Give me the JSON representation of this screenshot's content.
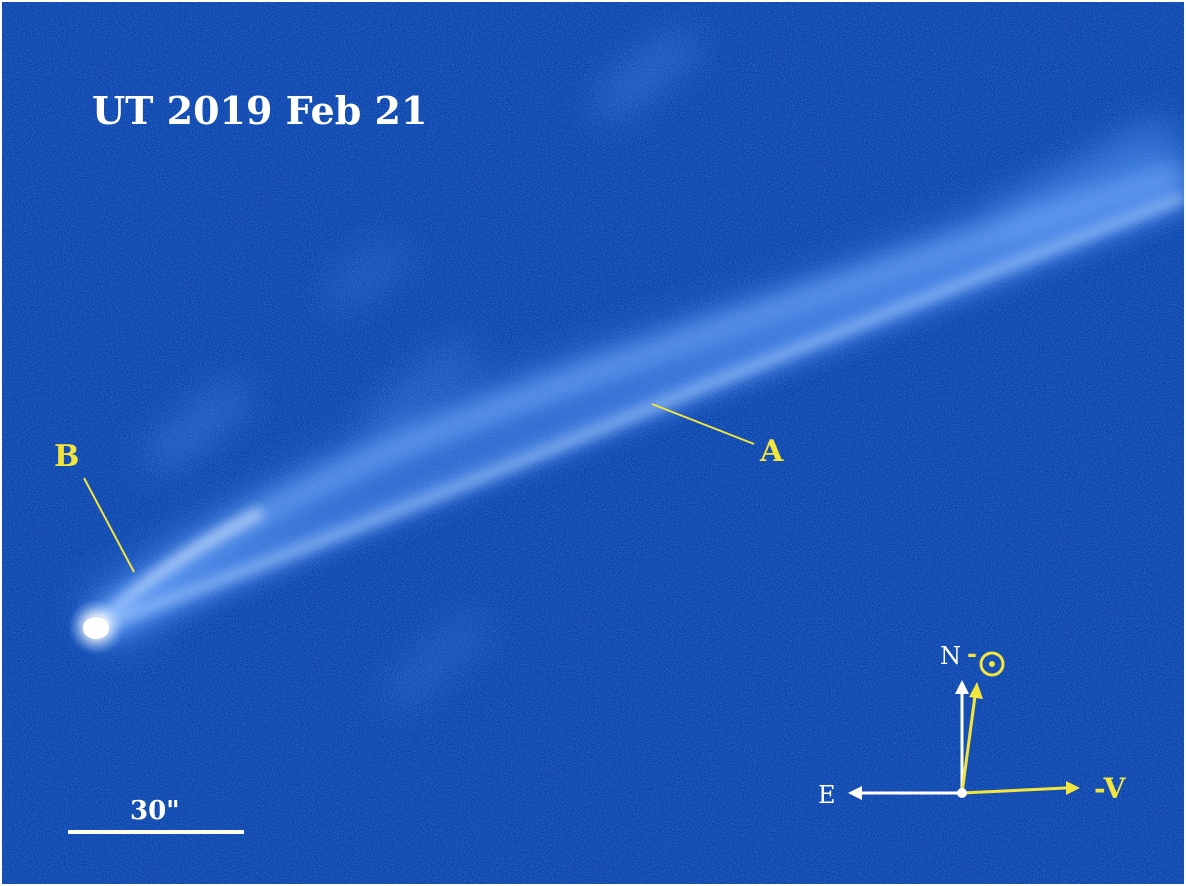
{
  "image": {
    "date_label": "UT 2019 Feb 21",
    "tail_labels": {
      "a": "A",
      "b": "B"
    },
    "scale_bar_label": "30\"",
    "compass": {
      "north": "N",
      "east": "E",
      "anti_sun_prefix": "-",
      "anti_velocity": "-V"
    },
    "colors": {
      "background": "#0c40a8",
      "annotation_yellow": "#f2e53c",
      "annotation_white": "#ffffff"
    }
  }
}
